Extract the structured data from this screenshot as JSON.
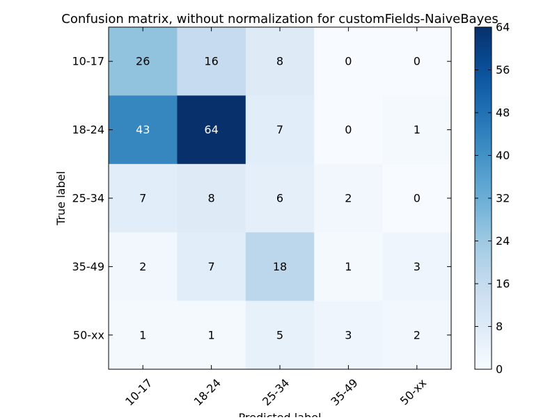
{
  "chart_data": {
    "type": "heatmap",
    "title": "Confusion matrix, without normalization for customFields-NaiveBayes",
    "xlabel": "Predicted label",
    "ylabel": "True label",
    "x_categories": [
      "10-17",
      "18-24",
      "25-34",
      "35-49",
      "50-xx"
    ],
    "y_categories": [
      "10-17",
      "18-24",
      "25-34",
      "35-49",
      "50-xx"
    ],
    "values": [
      [
        26,
        16,
        8,
        0,
        0
      ],
      [
        43,
        64,
        7,
        0,
        1
      ],
      [
        7,
        8,
        6,
        2,
        0
      ],
      [
        2,
        7,
        18,
        1,
        3
      ],
      [
        1,
        1,
        5,
        3,
        2
      ]
    ],
    "colormap": "Blues",
    "colorbar": {
      "min": 0,
      "max": 64,
      "ticks": [
        0,
        8,
        16,
        24,
        32,
        40,
        48,
        56,
        64
      ]
    },
    "grid": false
  }
}
